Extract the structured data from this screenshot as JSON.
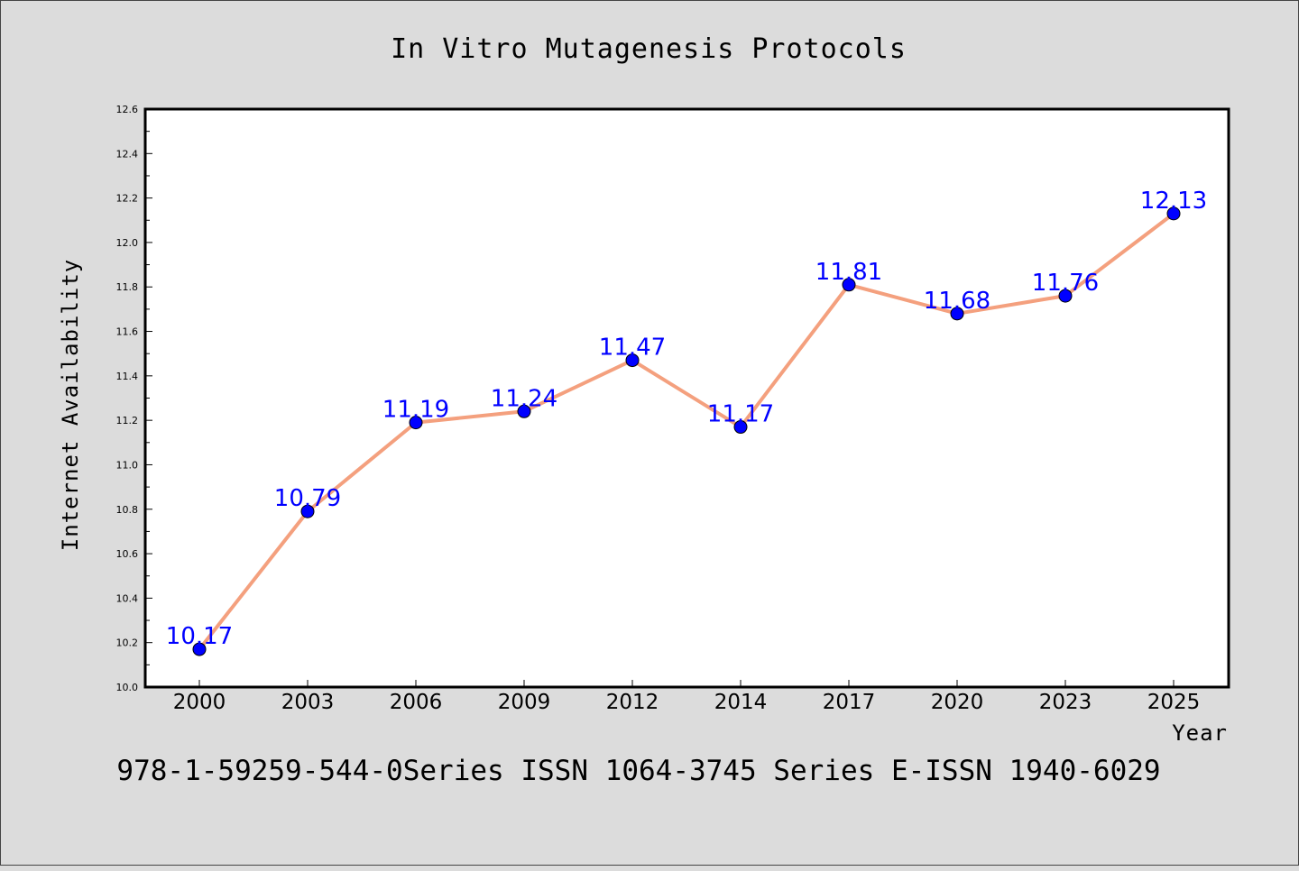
{
  "colors": {
    "background": "#dcdcdc",
    "plot_background": "#ffffff",
    "line": "#f4a07e",
    "marker": "#0000ff",
    "data_label": "#0000ff"
  },
  "footer_text": "978-1-59259-544-0Series ISSN 1064-3745 Series E-ISSN 1940-6029",
  "chart_data": {
    "type": "line",
    "title": "In Vitro Mutagenesis Protocols",
    "xlabel": "Year",
    "ylabel": "Internet Availability",
    "categories": [
      "2000",
      "2003",
      "2006",
      "2009",
      "2012",
      "2014",
      "2017",
      "2020",
      "2023",
      "2025"
    ],
    "values": [
      10.17,
      10.79,
      11.19,
      11.24,
      11.47,
      11.17,
      11.81,
      11.68,
      11.76,
      12.13
    ],
    "data_labels": [
      "10.17",
      "10.79",
      "11.19",
      "11.24",
      "11.47",
      "11.17",
      "11.81",
      "11.68",
      "11.76",
      "12.13"
    ],
    "ylim": [
      10.0,
      12.6
    ],
    "yticks": [
      "10.0",
      "10.2",
      "10.4",
      "10.6",
      "10.8",
      "11.0",
      "11.2",
      "11.4",
      "11.6",
      "11.8",
      "12.0",
      "12.2",
      "12.4",
      "12.6"
    ],
    "grid": false,
    "legend": "none"
  }
}
